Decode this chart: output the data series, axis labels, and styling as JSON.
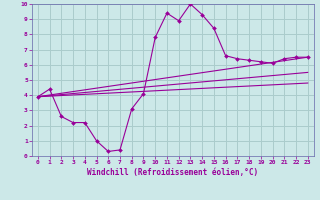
{
  "title": "",
  "xlabel": "Windchill (Refroidissement éolien,°C)",
  "ylabel": "",
  "bg_color": "#cce8e8",
  "line_color": "#990099",
  "grid_color": "#aacccc",
  "axis_bg": "#cce8e8",
  "xlim": [
    -0.5,
    23.5
  ],
  "ylim": [
    0,
    10
  ],
  "xticks": [
    0,
    1,
    2,
    3,
    4,
    5,
    6,
    7,
    8,
    9,
    10,
    11,
    12,
    13,
    14,
    15,
    16,
    17,
    18,
    19,
    20,
    21,
    22,
    23
  ],
  "yticks": [
    0,
    1,
    2,
    3,
    4,
    5,
    6,
    7,
    8,
    9,
    10
  ],
  "line1_x": [
    0,
    1,
    2,
    3,
    4,
    5,
    6,
    7,
    8,
    9,
    10,
    11,
    12,
    13,
    14,
    15,
    16,
    17,
    18,
    19,
    20,
    21,
    22,
    23
  ],
  "line1_y": [
    3.9,
    4.4,
    2.6,
    2.2,
    2.2,
    1.0,
    0.3,
    0.4,
    3.1,
    4.1,
    7.8,
    9.4,
    8.9,
    10.0,
    9.3,
    8.4,
    6.6,
    6.4,
    6.3,
    6.2,
    6.1,
    6.4,
    6.5,
    6.5
  ],
  "line2_x": [
    0,
    23
  ],
  "line2_y": [
    3.9,
    6.5
  ],
  "line3_x": [
    0,
    23
  ],
  "line3_y": [
    3.9,
    5.5
  ],
  "line4_x": [
    0,
    23
  ],
  "line4_y": [
    3.9,
    4.8
  ]
}
